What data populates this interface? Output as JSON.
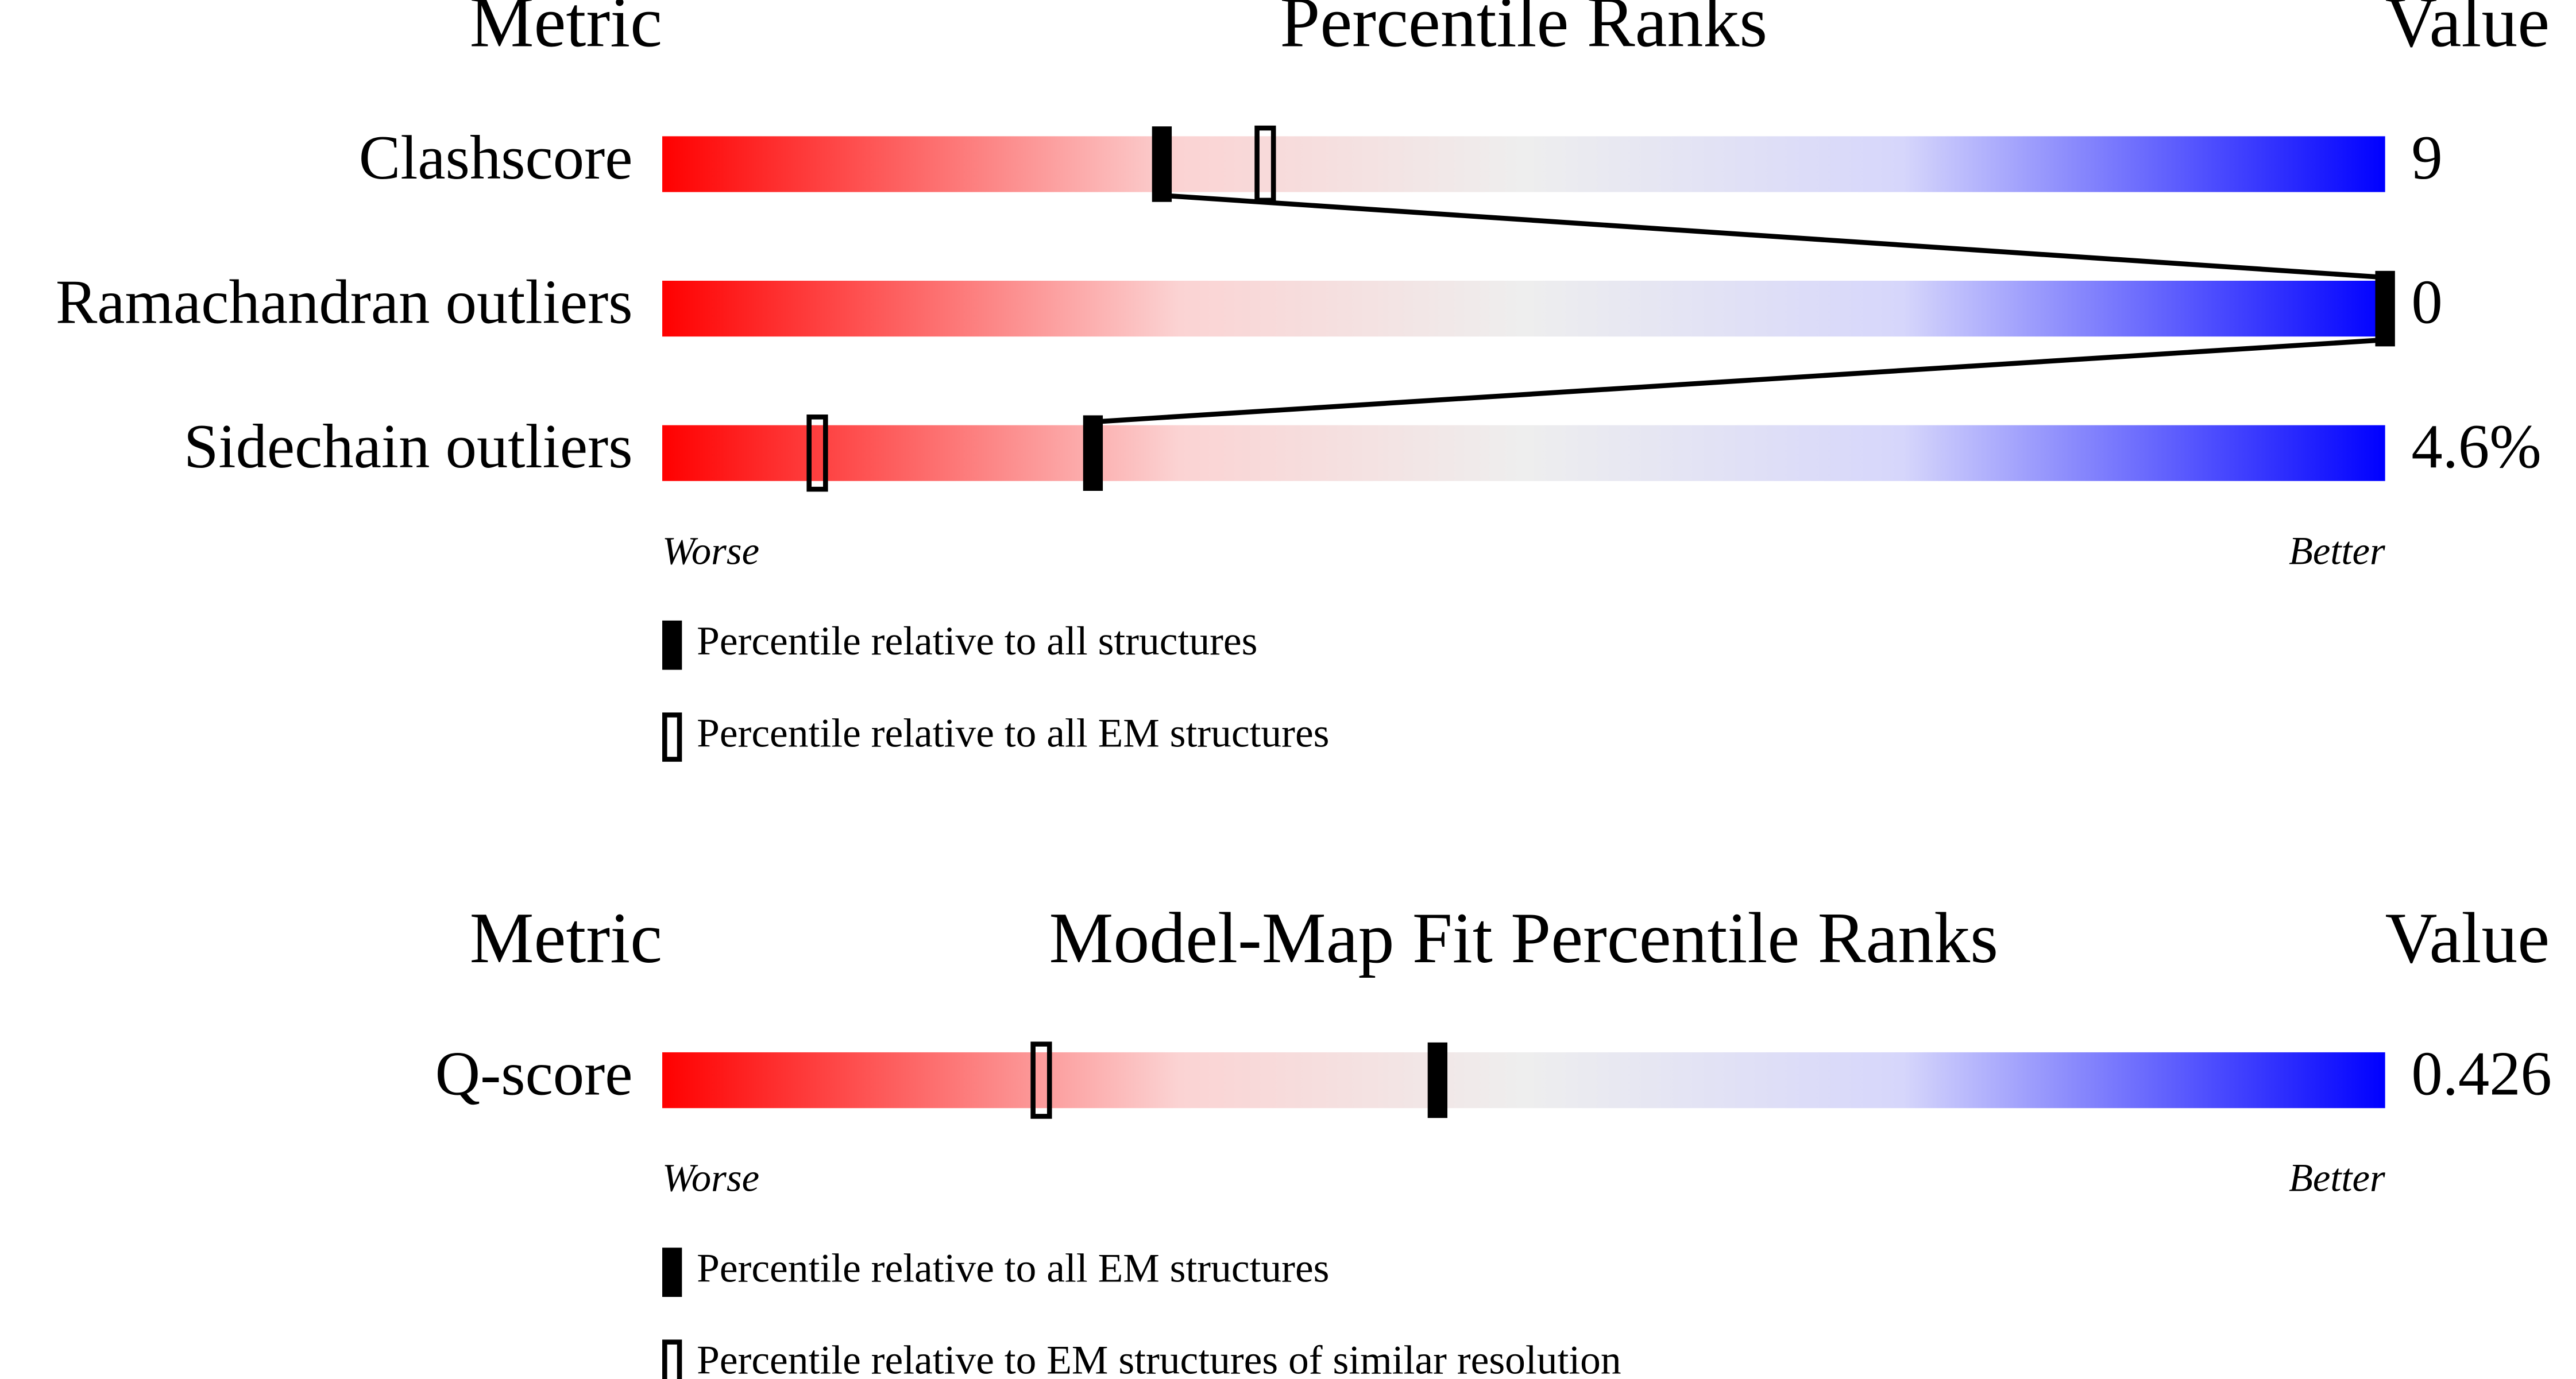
{
  "chart_data": [
    {
      "type": "percentile",
      "headers": {
        "metric": "Metric",
        "title": "Percentile Ranks",
        "value": "Value"
      },
      "categories": [
        "Clashscore",
        "Ramachandran outliers",
        "Sidechain outliers"
      ],
      "value_column": [
        "9",
        "0",
        "4.6%"
      ],
      "series": [
        {
          "name": "Percentile relative to all structures",
          "color": "#000000",
          "values": [
            29,
            100,
            25
          ]
        },
        {
          "name": "Percentile relative to all EM structures",
          "color": "#000000",
          "values": [
            35,
            null,
            9
          ]
        }
      ],
      "xlim": [
        0,
        100
      ],
      "worse": "Worse",
      "better": "Better",
      "connect": true
    },
    {
      "type": "percentile",
      "headers": {
        "metric": "Metric",
        "title": "Model-Map Fit Percentile Ranks",
        "value": "Value"
      },
      "categories": [
        "Q-score"
      ],
      "value_column": [
        "0.426"
      ],
      "series": [
        {
          "name": "Percentile relative to all EM structures",
          "color": "#000000",
          "values": [
            45
          ]
        },
        {
          "name": "Percentile relative to EM structures of similar resolution",
          "color": "#000000",
          "values": [
            22
          ]
        }
      ],
      "xlim": [
        0,
        100
      ],
      "worse": "Worse",
      "better": "Better",
      "connect": false
    }
  ]
}
